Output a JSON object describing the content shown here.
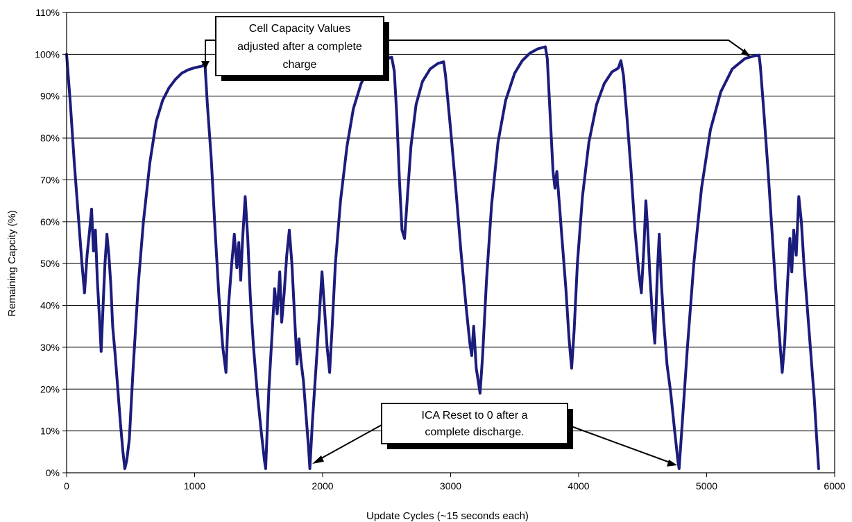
{
  "chart_data": {
    "type": "line",
    "title": "",
    "xlabel": "Update Cycles (~15 seconds each)",
    "ylabel": "Remaining Capcity (%)",
    "xlim": [
      0,
      6000
    ],
    "ylim": [
      0,
      110
    ],
    "x_ticks": [
      0,
      1000,
      2000,
      3000,
      4000,
      5000,
      6000
    ],
    "x_tick_labels": [
      "0",
      "1000",
      "2000",
      "3000",
      "4000",
      "5000",
      "6000"
    ],
    "y_ticks": [
      0,
      10,
      20,
      30,
      40,
      50,
      60,
      70,
      80,
      90,
      100,
      110
    ],
    "y_tick_labels": [
      "0%",
      "10%",
      "20%",
      "30%",
      "40%",
      "50%",
      "60%",
      "70%",
      "80%",
      "90%",
      "100%",
      "110%"
    ],
    "grid": "horizontal",
    "legend": "none",
    "colors": {
      "line": "#1c1c7c",
      "grid": "#000000"
    },
    "series": [
      {
        "values": [
          [
            0,
            100
          ],
          [
            30,
            88
          ],
          [
            60,
            74
          ],
          [
            90,
            62
          ],
          [
            120,
            50
          ],
          [
            140,
            43
          ],
          [
            160,
            52
          ],
          [
            180,
            58
          ],
          [
            195,
            63
          ],
          [
            210,
            53
          ],
          [
            225,
            58
          ],
          [
            240,
            46
          ],
          [
            255,
            38
          ],
          [
            270,
            29
          ],
          [
            285,
            40
          ],
          [
            300,
            50
          ],
          [
            315,
            57
          ],
          [
            330,
            52
          ],
          [
            345,
            45
          ],
          [
            360,
            35
          ],
          [
            380,
            28
          ],
          [
            400,
            20
          ],
          [
            420,
            12
          ],
          [
            440,
            5
          ],
          [
            455,
            1
          ],
          [
            470,
            3
          ],
          [
            490,
            8
          ],
          [
            520,
            25
          ],
          [
            560,
            45
          ],
          [
            600,
            60
          ],
          [
            650,
            74
          ],
          [
            700,
            84
          ],
          [
            750,
            89
          ],
          [
            800,
            92
          ],
          [
            850,
            94
          ],
          [
            900,
            95.5
          ],
          [
            950,
            96.3
          ],
          [
            1000,
            96.8
          ],
          [
            1060,
            97.2
          ],
          [
            1080,
            98
          ],
          [
            1100,
            88
          ],
          [
            1130,
            75
          ],
          [
            1160,
            58
          ],
          [
            1190,
            42
          ],
          [
            1220,
            30
          ],
          [
            1245,
            24
          ],
          [
            1265,
            40
          ],
          [
            1290,
            50
          ],
          [
            1310,
            57
          ],
          [
            1330,
            49
          ],
          [
            1345,
            55
          ],
          [
            1360,
            46
          ],
          [
            1375,
            56
          ],
          [
            1395,
            66
          ],
          [
            1415,
            56
          ],
          [
            1435,
            42
          ],
          [
            1460,
            30
          ],
          [
            1490,
            19
          ],
          [
            1520,
            10
          ],
          [
            1545,
            3
          ],
          [
            1555,
            1
          ],
          [
            1580,
            20
          ],
          [
            1605,
            33
          ],
          [
            1625,
            44
          ],
          [
            1645,
            38
          ],
          [
            1665,
            48
          ],
          [
            1680,
            36
          ],
          [
            1700,
            43
          ],
          [
            1720,
            52
          ],
          [
            1740,
            58
          ],
          [
            1760,
            50
          ],
          [
            1780,
            38
          ],
          [
            1800,
            26
          ],
          [
            1815,
            32
          ],
          [
            1830,
            27
          ],
          [
            1850,
            22
          ],
          [
            1870,
            14
          ],
          [
            1890,
            6
          ],
          [
            1900,
            1
          ],
          [
            1920,
            12
          ],
          [
            1950,
            26
          ],
          [
            1975,
            38
          ],
          [
            1995,
            48
          ],
          [
            2015,
            39
          ],
          [
            2035,
            30
          ],
          [
            2055,
            24
          ],
          [
            2075,
            35
          ],
          [
            2100,
            50
          ],
          [
            2140,
            65
          ],
          [
            2190,
            78
          ],
          [
            2240,
            87
          ],
          [
            2300,
            93
          ],
          [
            2360,
            96.5
          ],
          [
            2420,
            98.2
          ],
          [
            2480,
            98.8
          ],
          [
            2540,
            99.3
          ],
          [
            2560,
            96
          ],
          [
            2580,
            85
          ],
          [
            2600,
            70
          ],
          [
            2620,
            58
          ],
          [
            2640,
            56
          ],
          [
            2660,
            65
          ],
          [
            2690,
            78
          ],
          [
            2730,
            88
          ],
          [
            2780,
            93.5
          ],
          [
            2840,
            96.5
          ],
          [
            2900,
            97.8
          ],
          [
            2945,
            98.2
          ],
          [
            2960,
            95
          ],
          [
            3000,
            82
          ],
          [
            3040,
            68
          ],
          [
            3080,
            53
          ],
          [
            3120,
            40
          ],
          [
            3150,
            31
          ],
          [
            3165,
            28
          ],
          [
            3180,
            35
          ],
          [
            3190,
            30
          ],
          [
            3200,
            25
          ],
          [
            3215,
            22
          ],
          [
            3230,
            19
          ],
          [
            3250,
            28
          ],
          [
            3280,
            46
          ],
          [
            3320,
            64
          ],
          [
            3370,
            79
          ],
          [
            3430,
            89
          ],
          [
            3500,
            95.5
          ],
          [
            3560,
            98.5
          ],
          [
            3620,
            100.3
          ],
          [
            3680,
            101.3
          ],
          [
            3740,
            101.8
          ],
          [
            3755,
            99
          ],
          [
            3780,
            84
          ],
          [
            3800,
            72
          ],
          [
            3815,
            68
          ],
          [
            3830,
            72
          ],
          [
            3845,
            66
          ],
          [
            3870,
            56
          ],
          [
            3900,
            44
          ],
          [
            3925,
            32
          ],
          [
            3945,
            25
          ],
          [
            3965,
            34
          ],
          [
            3990,
            50
          ],
          [
            4030,
            66
          ],
          [
            4080,
            79
          ],
          [
            4140,
            88
          ],
          [
            4200,
            93
          ],
          [
            4260,
            95.8
          ],
          [
            4310,
            96.7
          ],
          [
            4330,
            98.5
          ],
          [
            4350,
            95
          ],
          [
            4380,
            84
          ],
          [
            4410,
            72
          ],
          [
            4440,
            58
          ],
          [
            4470,
            48
          ],
          [
            4490,
            43
          ],
          [
            4510,
            54
          ],
          [
            4525,
            65
          ],
          [
            4540,
            58
          ],
          [
            4555,
            48
          ],
          [
            4575,
            38
          ],
          [
            4595,
            31
          ],
          [
            4615,
            48
          ],
          [
            4630,
            57
          ],
          [
            4645,
            46
          ],
          [
            4665,
            36
          ],
          [
            4690,
            26
          ],
          [
            4720,
            19
          ],
          [
            4750,
            10
          ],
          [
            4775,
            3
          ],
          [
            4785,
            1
          ],
          [
            4810,
            12
          ],
          [
            4850,
            30
          ],
          [
            4900,
            50
          ],
          [
            4960,
            68
          ],
          [
            5030,
            82
          ],
          [
            5110,
            91
          ],
          [
            5200,
            96.5
          ],
          [
            5300,
            99
          ],
          [
            5380,
            99.7
          ],
          [
            5410,
            99.8
          ],
          [
            5420,
            97
          ],
          [
            5450,
            85
          ],
          [
            5480,
            72
          ],
          [
            5510,
            58
          ],
          [
            5540,
            44
          ],
          [
            5570,
            32
          ],
          [
            5590,
            24
          ],
          [
            5610,
            31
          ],
          [
            5630,
            44
          ],
          [
            5650,
            56
          ],
          [
            5665,
            48
          ],
          [
            5680,
            58
          ],
          [
            5700,
            52
          ],
          [
            5720,
            66
          ],
          [
            5740,
            60
          ],
          [
            5760,
            50
          ],
          [
            5780,
            42
          ],
          [
            5800,
            34
          ],
          [
            5820,
            26
          ],
          [
            5840,
            18
          ],
          [
            5860,
            8
          ],
          [
            5875,
            1
          ]
        ]
      }
    ],
    "annotations": [
      {
        "id": "top",
        "lines": [
          "Cell Capacity Values",
          "adjusted after a complete",
          "charge"
        ]
      },
      {
        "id": "bottom",
        "lines": [
          "ICA Reset to 0 after a",
          "complete discharge."
        ]
      }
    ]
  }
}
